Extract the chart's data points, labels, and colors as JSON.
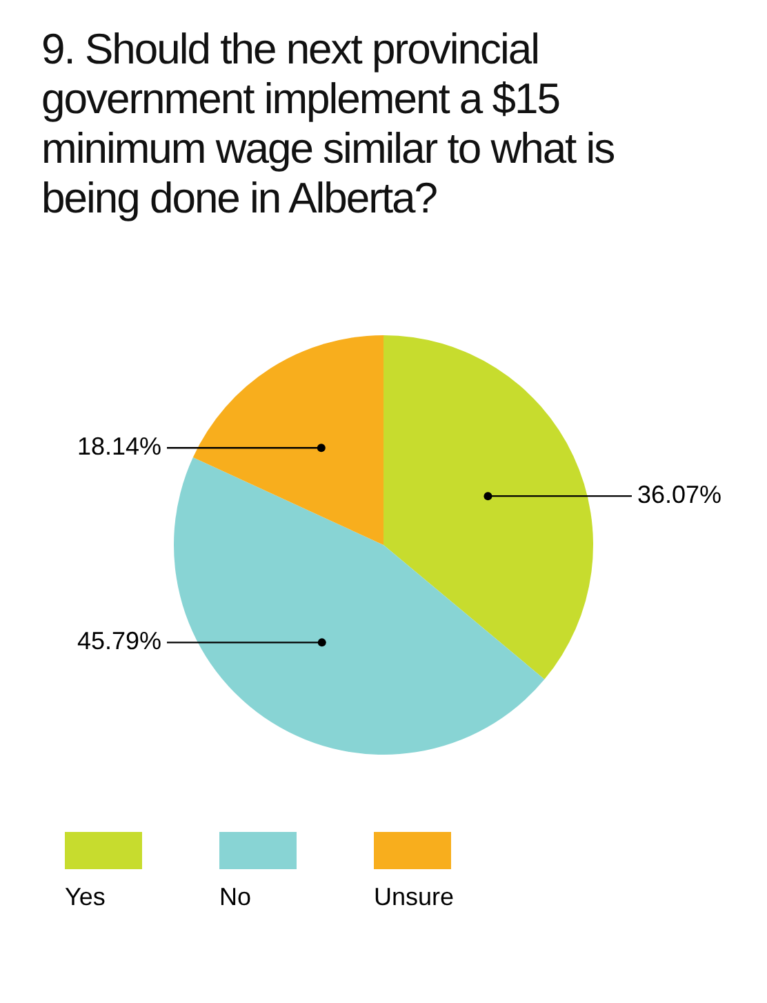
{
  "chart_data": {
    "type": "pie",
    "title": "9. Should the next provincial government implement a $15 minimum wage similar to what is being done in Alberta?",
    "categories": [
      "Yes",
      "No",
      "Unsure"
    ],
    "values": [
      36.07,
      45.79,
      18.14
    ],
    "value_labels": [
      "36.07%",
      "45.79%",
      "18.14%"
    ],
    "colors": [
      "#c7dc2e",
      "#88d4d4",
      "#f8ae1d"
    ],
    "legend": "bottom"
  }
}
